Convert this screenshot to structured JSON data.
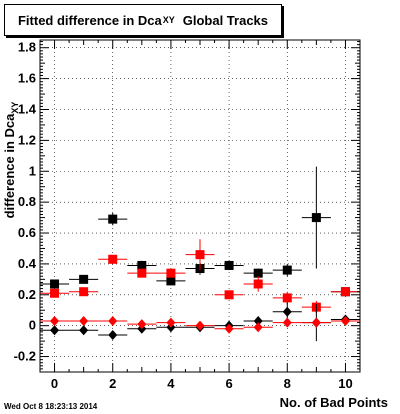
{
  "title": {
    "main": "Fitted difference in Dca",
    "sub": "XY",
    "suffix": "Global Tracks"
  },
  "ylabel": {
    "main": "difference in Dca",
    "sub": "XY"
  },
  "xlabel": "No. of Bad Points",
  "timestamp": "Wed Oct  8 18:23:13 2014",
  "chart_data": {
    "type": "scatter",
    "xlim": [
      -0.5,
      10.5
    ],
    "ylim": [
      -0.3,
      1.85
    ],
    "grid": true,
    "x_ticks": [
      0,
      2,
      4,
      6,
      8,
      10
    ],
    "y_ticks": [
      -0.2,
      0,
      0.2,
      0.4,
      0.6,
      0.8,
      1,
      1.2,
      1.4,
      1.6,
      1.8
    ],
    "x_tick_labels": [
      "0",
      "2",
      "4",
      "6",
      "8",
      "10"
    ],
    "y_tick_labels": [
      "-0.2",
      "0",
      "0.2",
      "0.4",
      "0.6",
      "0.8",
      "1",
      "1.2",
      "1.4",
      "1.6",
      "1.8"
    ],
    "series": [
      {
        "marker": "square",
        "color": "#000000",
        "x": [
          0,
          1,
          2,
          3,
          4,
          5,
          6,
          7,
          8,
          9,
          10
        ],
        "y": [
          0.27,
          0.3,
          0.69,
          0.39,
          0.29,
          0.37,
          0.39,
          0.34,
          0.36,
          0.7,
          0.22
        ],
        "yerr": [
          0.02,
          0.02,
          0.04,
          0.03,
          0.02,
          0.04,
          0.03,
          0.03,
          0.04,
          0.33,
          0.02
        ]
      },
      {
        "marker": "square",
        "color": "#ff0000",
        "x": [
          0,
          1,
          2,
          3,
          4,
          5,
          6,
          7,
          8,
          9,
          10
        ],
        "y": [
          0.21,
          0.22,
          0.43,
          0.34,
          0.34,
          0.46,
          0.2,
          0.27,
          0.18,
          0.12,
          0.22
        ],
        "yerr": [
          0.01,
          0.01,
          0.02,
          0.02,
          0.02,
          0.1,
          0.02,
          0.05,
          0.04,
          0.04,
          0.02
        ]
      },
      {
        "marker": "diamond",
        "color": "#000000",
        "x": [
          0,
          1,
          2,
          3,
          4,
          5,
          6,
          7,
          8,
          9,
          10
        ],
        "y": [
          -0.03,
          -0.03,
          -0.06,
          -0.02,
          -0.01,
          -0.01,
          0.0,
          0.03,
          0.09,
          0.02,
          0.04
        ],
        "yerr": [
          0.01,
          0.01,
          0.02,
          0.02,
          0.02,
          0.03,
          0.03,
          0.03,
          0.06,
          0.12,
          0.02
        ]
      },
      {
        "marker": "diamond",
        "color": "#ff0000",
        "x": [
          0,
          1,
          2,
          3,
          4,
          5,
          6,
          7,
          8,
          9,
          10
        ],
        "y": [
          0.03,
          0.03,
          0.03,
          0.01,
          0.02,
          0.0,
          -0.02,
          -0.01,
          0.02,
          0.02,
          0.03
        ],
        "yerr": [
          0.005,
          0.005,
          0.01,
          0.01,
          0.01,
          0.02,
          0.02,
          0.02,
          0.02,
          0.03,
          0.01
        ]
      }
    ]
  }
}
